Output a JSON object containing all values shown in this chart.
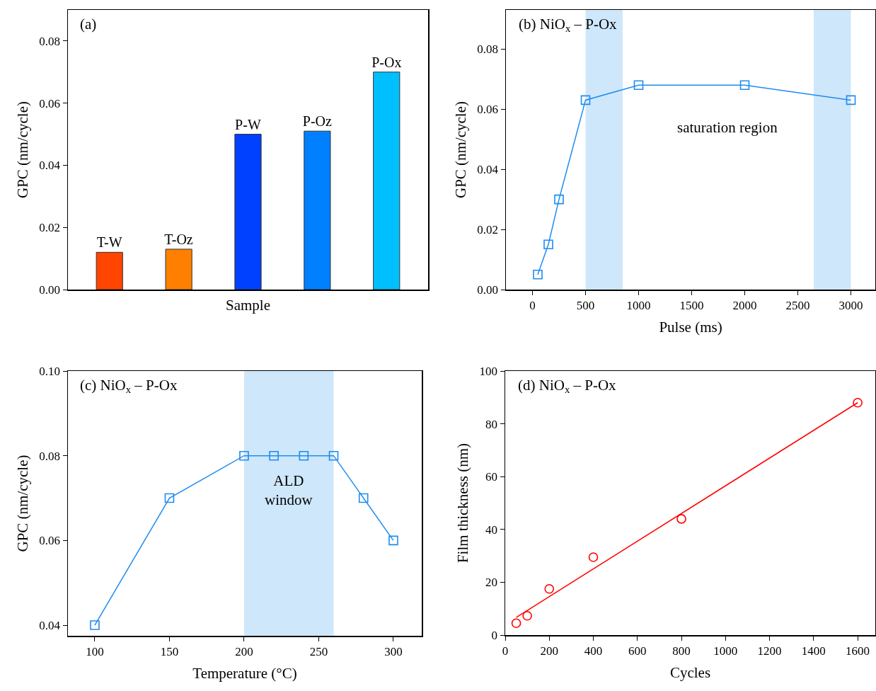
{
  "chart_data": [
    {
      "type": "bar",
      "annotations": [
        "(a)"
      ],
      "xlabel": "Sample",
      "ylabel": "GPC (nm/cycle)",
      "categories": [
        "T-W",
        "T-Oz",
        "P-W",
        "P-Oz",
        "P-Ox"
      ],
      "values": [
        0.012,
        0.013,
        0.05,
        0.051,
        0.07
      ],
      "colors": [
        "#ff4500",
        "#ff8000",
        "#0040ff",
        "#0080ff",
        "#00bfff"
      ],
      "ylim": [
        0,
        0.09
      ],
      "yticks": [
        {
          "value": 0,
          "label": "0.00"
        },
        {
          "value": 0.02,
          "label": "0.02"
        },
        {
          "value": 0.04,
          "label": "0.04"
        },
        {
          "value": 0.06,
          "label": "0.06"
        },
        {
          "value": 0.08,
          "label": "0.08"
        }
      ],
      "tick_labels": "y",
      "grid": false
    },
    {
      "type": "line",
      "annotations": [
        "(b) NiO$_{x}$ – P-Ox",
        "saturation region"
      ],
      "xlabel": "Pulse (ms)",
      "ylabel": "GPC (nm/cycle)",
      "x": [
        50,
        150,
        250,
        500,
        1000,
        2000,
        3000
      ],
      "series": [
        {
          "color": "#1e8cf0",
          "values": [
            0.005,
            0.015,
            0.03,
            0.063,
            0.068,
            0.068,
            0.063
          ]
        }
      ],
      "marker": "square",
      "xlim": [
        -250,
        3230
      ],
      "xticks": [
        0,
        500,
        1000,
        1500,
        2000,
        2500,
        3000
      ],
      "ylim": [
        0,
        0.093
      ],
      "yticks": [
        {
          "value": 0,
          "label": "0.00"
        },
        {
          "value": 0.02,
          "label": "0.02"
        },
        {
          "value": 0.04,
          "label": "0.04"
        },
        {
          "value": 0.06,
          "label": "0.06"
        },
        {
          "value": 0.08,
          "label": "0.08"
        }
      ],
      "bands": [
        {
          "axis": "x",
          "from": 500,
          "to": 850,
          "color": "#cfe7fb"
        },
        {
          "axis": "x",
          "from": 2650,
          "to": 3000,
          "color": "#cfe7fb"
        }
      ],
      "grid": false
    },
    {
      "type": "line",
      "annotations": [
        "(c) NiO$_{x}$ – P-Ox"
      ],
      "xlabel": "Temperature (°C)",
      "ylabel": "GPC (nm/cycle)",
      "x": [
        100,
        150,
        200,
        220,
        240,
        260,
        280,
        300
      ],
      "series": [
        {
          "color": "#1e8cf0",
          "values": [
            0.04,
            0.07,
            0.08,
            0.08,
            0.08,
            0.08,
            0.07,
            0.06
          ]
        }
      ],
      "marker": "square",
      "xlim": [
        82,
        319
      ],
      "xticks": [
        100,
        150,
        200,
        250,
        300
      ],
      "ylim": [
        0.0375,
        0.1
      ],
      "yticks": [
        {
          "value": 0.04,
          "label": "0.04"
        },
        {
          "value": 0.06,
          "label": "0.06"
        },
        {
          "value": 0.08,
          "label": "0.08"
        },
        {
          "value": 0.1,
          "label": "0.10"
        }
      ],
      "bands": [
        {
          "axis": "x",
          "from": 200,
          "to": 260,
          "color": "#cfe7fb",
          "label": "ALD\nwindow"
        }
      ],
      "grid": false
    },
    {
      "type": "scatter",
      "annotations": [
        "(d) NiO$_{x}$ – P-Ox"
      ],
      "xlabel": "Cycles",
      "ylabel": "Film thickness (nm)",
      "x": [
        50,
        100,
        200,
        400,
        800,
        1600
      ],
      "series": [
        {
          "type": "line",
          "color": "#ff0000",
          "x": [
            50,
            1600
          ],
          "values": [
            6.7,
            88
          ],
          "marker": "none"
        },
        {
          "color": "#ff0000",
          "values": [
            4.5,
            7.3,
            17.5,
            29.5,
            44,
            88
          ],
          "marker": "circle"
        }
      ],
      "xlim": [
        0,
        1680
      ],
      "xticks": [
        0,
        200,
        400,
        600,
        800,
        1000,
        1200,
        1400,
        1600
      ],
      "ylim": [
        0,
        100
      ],
      "yticks": [
        0,
        20,
        40,
        60,
        80,
        100
      ],
      "grid": false
    }
  ]
}
